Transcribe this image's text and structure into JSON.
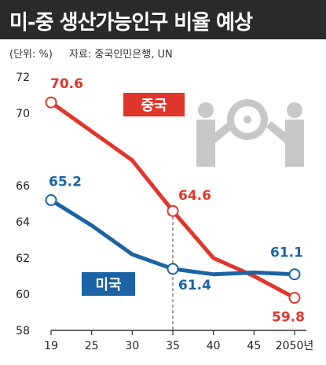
{
  "title": "미-중 생산가능인구 비율 예상",
  "unit_label": "(단위: %)",
  "source_label": "자료: 중국인민은행, UN",
  "colors": {
    "china": "#e0362b",
    "us": "#1b63a4",
    "title_bg": "#2a2a2a",
    "icon": "#c8c8c8"
  },
  "icon": "gear-people-icon",
  "chart_data": {
    "type": "line",
    "x": [
      "19",
      "25",
      "30",
      "35",
      "40",
      "45",
      "2050년"
    ],
    "y_ticks": [
      "72",
      "70",
      "66",
      "64",
      "62",
      "60",
      "58"
    ],
    "ylim": [
      58,
      72
    ],
    "grid": false,
    "series": [
      {
        "name": "중국",
        "values": [
          70.6,
          69.0,
          67.4,
          64.6,
          62.0,
          61.0,
          59.8
        ],
        "color": "#e0362b"
      },
      {
        "name": "미국",
        "values": [
          65.2,
          63.8,
          62.2,
          61.4,
          61.1,
          61.2,
          61.1
        ],
        "color": "#1b63a4"
      }
    ],
    "data_labels": [
      {
        "series": 0,
        "index": 0,
        "text": "70.6"
      },
      {
        "series": 0,
        "index": 3,
        "text": "64.6"
      },
      {
        "series": 0,
        "index": 6,
        "text": "59.8"
      },
      {
        "series": 1,
        "index": 0,
        "text": "65.2"
      },
      {
        "series": 1,
        "index": 3,
        "text": "61.4"
      },
      {
        "series": 1,
        "index": 6,
        "text": "61.1"
      }
    ],
    "highlight_x_index": 3
  }
}
